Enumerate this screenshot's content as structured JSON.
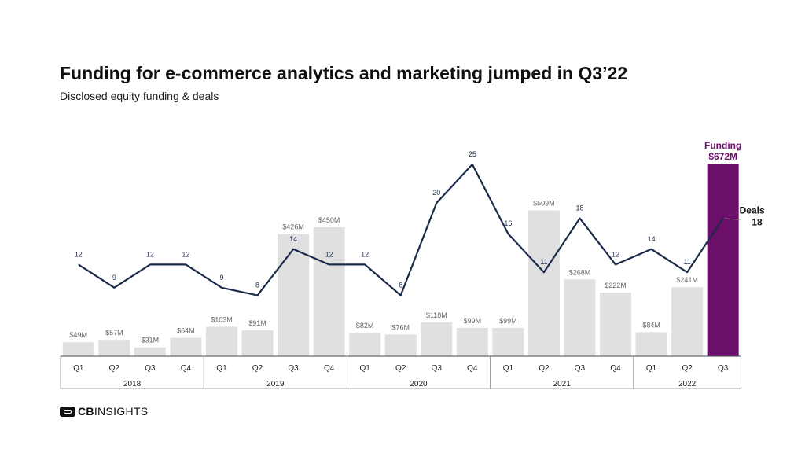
{
  "title": "Funding for e-commerce analytics and marketing jumped in Q3’22",
  "subtitle": "Disclosed equity funding & deals",
  "logo": {
    "bold": "CB",
    "rest": "INSIGHTS"
  },
  "colors": {
    "bar": "#e0e0e0",
    "highlight": "#6b0f6b",
    "line": "#1b2a4a",
    "bar_label": "#666666",
    "deal_label": "#1b2a4a"
  },
  "chart_data": {
    "type": "bar",
    "categories": [
      "Q1",
      "Q2",
      "Q3",
      "Q4",
      "Q1",
      "Q2",
      "Q3",
      "Q4",
      "Q1",
      "Q2",
      "Q3",
      "Q4",
      "Q1",
      "Q2",
      "Q3",
      "Q4",
      "Q1",
      "Q2",
      "Q3"
    ],
    "years": [
      {
        "label": "2018",
        "count": 4
      },
      {
        "label": "2019",
        "count": 4
      },
      {
        "label": "2020",
        "count": 4
      },
      {
        "label": "2021",
        "count": 4
      },
      {
        "label": "2022",
        "count": 3
      }
    ],
    "series": [
      {
        "name": "Funding",
        "kind": "bar",
        "unit": "$M",
        "values": [
          49,
          57,
          31,
          64,
          103,
          91,
          426,
          450,
          82,
          76,
          118,
          99,
          99,
          509,
          268,
          222,
          84,
          241,
          672
        ],
        "labels": [
          "$49M",
          "$57M",
          "$31M",
          "$64M",
          "$103M",
          "$91M",
          "$426M",
          "$450M",
          "$82M",
          "$76M",
          "$118M",
          "$99M",
          "$99M",
          "$509M",
          "$268M",
          "$222M",
          "$84M",
          "$241M",
          ""
        ]
      },
      {
        "name": "Deals",
        "kind": "line",
        "values": [
          12,
          9,
          12,
          12,
          9,
          8,
          14,
          12,
          12,
          8,
          20,
          25,
          16,
          11,
          18,
          12,
          14,
          11,
          18
        ],
        "labels": [
          "12",
          "9",
          "12",
          "12",
          "9",
          "8",
          "14",
          "12",
          "12",
          "8",
          "20",
          "25",
          "16",
          "11",
          "18",
          "12",
          "14",
          "11",
          ""
        ]
      }
    ],
    "callouts": {
      "funding": {
        "name": "Funding",
        "value": "$672M"
      },
      "deals": {
        "name": "Deals",
        "value": "18"
      }
    },
    "highlight_index": 18,
    "grid": false
  }
}
